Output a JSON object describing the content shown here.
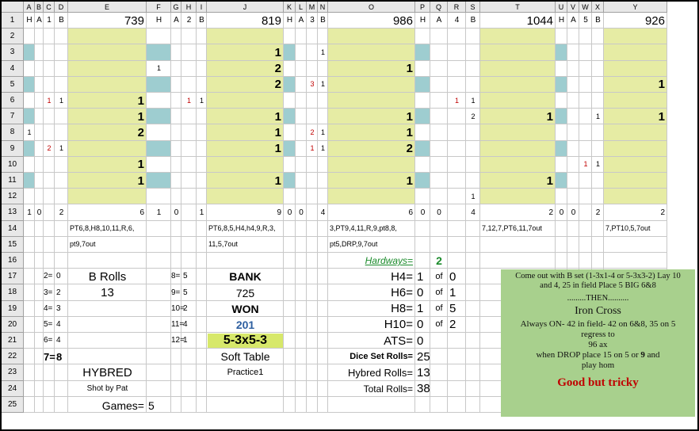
{
  "columns": [
    "A",
    "B",
    "C",
    "D",
    "E",
    "F",
    "G",
    "H",
    "I",
    "J",
    "K",
    "L",
    "M",
    "N",
    "O",
    "P",
    "Q",
    "R",
    "S",
    "T",
    "U",
    "V",
    "W",
    "X",
    "Y"
  ],
  "rows": [
    "1",
    "2",
    "3",
    "4",
    "5",
    "6",
    "7",
    "8",
    "9",
    "10",
    "11",
    "12",
    "13",
    "14",
    "15",
    "16",
    "17",
    "18",
    "19",
    "20",
    "21",
    "22",
    "23",
    "24",
    "25"
  ],
  "row1": {
    "a": "H",
    "b": "A",
    "c": "1",
    "d": "B",
    "e": "739",
    "f": "H",
    "g": "A",
    "h": "2",
    "i": "B",
    "j": "819",
    "k": "H",
    "l": "A",
    "m": "3",
    "n": "B",
    "o": "986",
    "p": "H",
    "q": "A",
    "r": "4",
    "s": "B",
    "t": "1044",
    "u": "H",
    "v": "A",
    "w": "5",
    "x": "B",
    "y": "926"
  },
  "group1": {
    "e": {
      "r6": "1",
      "r7": "1",
      "r8": "2",
      "r10": "1",
      "r11": "1"
    },
    "c": {
      "r6": "1",
      "r9": "2"
    },
    "d": {
      "r6": "1",
      "r9": "1"
    },
    "a": {
      "r8": "1"
    },
    "f": {
      "r4": "1"
    },
    "row13": {
      "a": "1",
      "b": "0",
      "d": "2",
      "e": "6",
      "f": "1",
      "g": "0"
    }
  },
  "group2": {
    "j": {
      "r3": "1",
      "r4": "2",
      "r5": "2",
      "r7": "1",
      "r8": "1",
      "r9": "1",
      "r11": "1"
    },
    "h": {
      "r6": "1"
    },
    "i": {
      "r6": "1"
    },
    "m": {
      "r5": "3",
      "r8": "2",
      "r9": "1"
    },
    "n": {
      "r3": "1",
      "r5": "1",
      "r8": "1",
      "r9": "1"
    },
    "row13": {
      "i": "1",
      "j": "9",
      "k": "0",
      "l": "0",
      "n": "4"
    }
  },
  "group3": {
    "o": {
      "r4": "1",
      "r7": "1",
      "r8": "1",
      "r9": "2",
      "r11": "1"
    },
    "r": {
      "r6": "1"
    },
    "s": {
      "r6": "1",
      "r7": "2",
      "r12": "1"
    },
    "row13": {
      "o": "6",
      "p": "0",
      "q": "0",
      "s": "4"
    }
  },
  "group4": {
    "t": {
      "r7": "1",
      "r11": "1"
    },
    "w": {
      "r10": "1"
    },
    "x": {
      "r7": "1",
      "r10": "1"
    },
    "row13": {
      "t": "2",
      "u": "0",
      "v": "0",
      "x": "2"
    }
  },
  "group5": {
    "y": {
      "r5": "1",
      "r7": "1"
    },
    "row13": {
      "y": "2"
    }
  },
  "seq": {
    "e14": "PT6,8,H8,10,11,R,6,",
    "e15": "pt9,7out",
    "j14": "PT6,8,5,H4,h4,9,R,3,",
    "j15": "11,5,7out",
    "o14": "3,PT9,4,11,R,9,pt8,8,",
    "o15": "pt5,DRP,9,7out",
    "t14": "7,12,7,PT6,11,7out",
    "y14": "7,PT10,5,7out"
  },
  "stats": {
    "c17": "2=",
    "d17": "0",
    "c18": "3=",
    "d18": "2",
    "c19": "4=",
    "d19": "3",
    "c20": "5=",
    "d20": "4",
    "c21": "6=",
    "d21": "4",
    "c22": "7=",
    "d22": "8",
    "g17": "8=",
    "h17": "5",
    "g18": "9=",
    "h18": "5",
    "g19": "10=",
    "h19": "2",
    "g20": "11=",
    "h20": "4",
    "g21": "12=",
    "h21": "1",
    "brolls_label": "B Rolls",
    "brolls_value": "13",
    "hybred": "HYBRED",
    "shot_by": "Shot by Pat",
    "games_label": "Games=",
    "games_value": "5"
  },
  "bank": {
    "bank_label": "BANK",
    "bank_value": "725",
    "won_label": "WON",
    "won_value": "201",
    "set": "5-3x5-3",
    "table": "Soft Table",
    "practice": "Practice1"
  },
  "hardways": {
    "label": "Hardways=",
    "value": "2",
    "h4_label": "H4=",
    "h4_value": "1",
    "h4_of": "of",
    "h4_total": "0",
    "h6_label": "H6=",
    "h6_value": "0",
    "h6_of": "of",
    "h6_total": "1",
    "h8_label": "H8=",
    "h8_value": "1",
    "h8_of": "of",
    "h8_total": "5",
    "h10_label": "H10=",
    "h10_value": "0",
    "h10_of": "of",
    "h10_total": "2",
    "ats_label": "ATS=",
    "ats_value": "0",
    "dice_label": "Dice Set Rolls=",
    "dice_value": "25",
    "hybred_label": "Hybred Rolls=",
    "hybred_value": "13",
    "total_label": "Total Rolls=",
    "total_value": "38"
  },
  "note": {
    "line1": "Come out with B set (1-3x1-4 or 5-3x3-2) Lay 10",
    "line2": "and 4, 25 in field Place 5 BIG 6&8",
    "line3": ".........THEN..........",
    "line4": "Iron Cross",
    "line5": "Always ON- 42 in field- 42 on 6&8, 35 on 5",
    "line6": "regress to",
    "line7": "96 ax",
    "line8a": "when DROP place 15 on 5 or ",
    "line8b": "9",
    "line8c": " and",
    "line9": "play hom",
    "line10": "Good but tricky"
  },
  "colors": {
    "yellow": "#e6eca4",
    "teal": "#9ecdd0",
    "note_green": "#a8d08d",
    "red": "#c00000",
    "green_text": "#1a8a2a",
    "blue_text": "#2e5fa0",
    "yellow_box": "#d7e86a"
  }
}
